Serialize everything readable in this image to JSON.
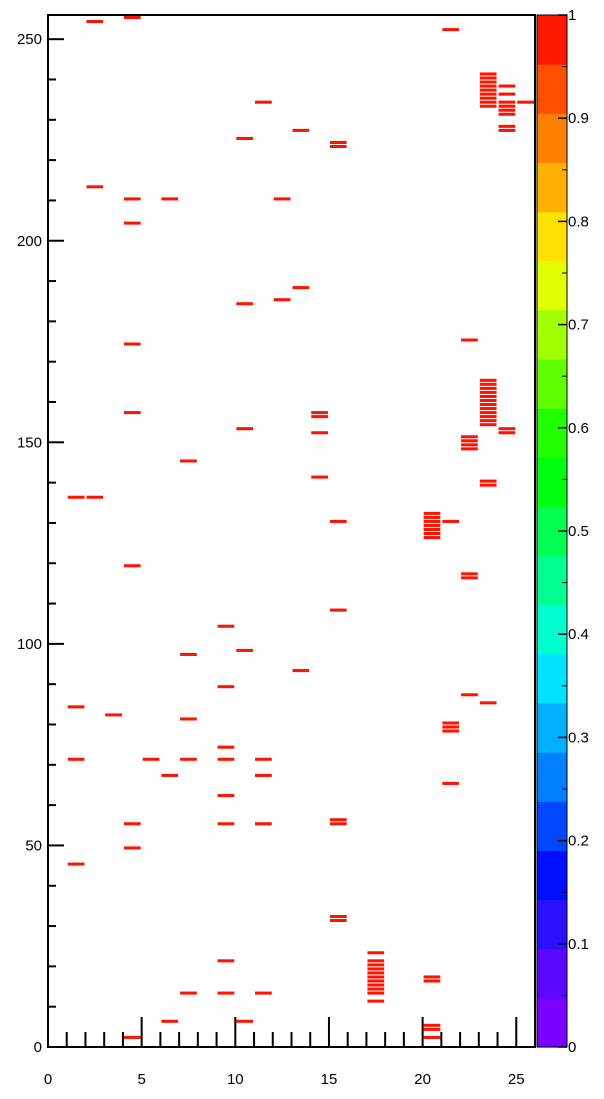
{
  "chart_data": {
    "type": "heatmap",
    "title": "",
    "xlabel": "",
    "ylabel": "",
    "xlim": [
      0,
      26
    ],
    "ylim": [
      0,
      256
    ],
    "x_ticks": [
      0,
      5,
      10,
      15,
      20,
      25
    ],
    "y_ticks": [
      0,
      50,
      100,
      150,
      200,
      250
    ],
    "colorbar": {
      "range": [
        0,
        1
      ],
      "ticks": [
        0,
        0.1,
        0.2,
        0.3,
        0.4,
        0.5,
        0.6,
        0.7,
        0.8,
        0.9,
        1
      ],
      "colors": [
        "#7b00ff",
        "#5a08ff",
        "#2a10ff",
        "#0010ff",
        "#0048ff",
        "#0080ff",
        "#00b0ff",
        "#00e0ff",
        "#00ffd0",
        "#00ff90",
        "#00ff50",
        "#00ff10",
        "#20ff00",
        "#60ff00",
        "#a0ff00",
        "#e0ff00",
        "#ffe000",
        "#ffb000",
        "#ff8000",
        "#ff5000",
        "#ff1800"
      ]
    },
    "cell_value": 1,
    "cell_color": "#ff1200",
    "cells": [
      [
        2,
        254
      ],
      [
        4,
        255
      ],
      [
        21,
        252
      ],
      [
        23,
        241
      ],
      [
        23,
        240
      ],
      [
        23,
        239
      ],
      [
        23,
        238
      ],
      [
        24,
        238
      ],
      [
        23,
        237
      ],
      [
        23,
        236
      ],
      [
        24,
        236
      ],
      [
        23,
        235
      ],
      [
        23,
        234
      ],
      [
        24,
        234
      ],
      [
        25,
        234
      ],
      [
        23,
        233
      ],
      [
        24,
        233
      ],
      [
        24,
        232
      ],
      [
        24,
        231
      ],
      [
        24,
        228
      ],
      [
        24,
        227
      ],
      [
        11,
        234
      ],
      [
        13,
        227
      ],
      [
        10,
        225
      ],
      [
        15,
        224
      ],
      [
        15,
        223
      ],
      [
        2,
        213
      ],
      [
        4,
        210
      ],
      [
        6,
        210
      ],
      [
        12,
        210
      ],
      [
        4,
        204
      ],
      [
        13,
        188
      ],
      [
        12,
        185
      ],
      [
        10,
        184
      ],
      [
        4,
        174
      ],
      [
        22,
        175
      ],
      [
        23,
        165
      ],
      [
        23,
        164
      ],
      [
        23,
        163
      ],
      [
        23,
        162
      ],
      [
        23,
        161
      ],
      [
        23,
        160
      ],
      [
        23,
        159
      ],
      [
        23,
        158
      ],
      [
        23,
        157
      ],
      [
        23,
        156
      ],
      [
        23,
        155
      ],
      [
        23,
        154
      ],
      [
        24,
        153
      ],
      [
        24,
        152
      ],
      [
        4,
        157
      ],
      [
        14,
        157
      ],
      [
        14,
        156
      ],
      [
        14,
        152
      ],
      [
        10,
        153
      ],
      [
        22,
        151
      ],
      [
        22,
        150
      ],
      [
        22,
        149
      ],
      [
        22,
        148
      ],
      [
        7,
        145
      ],
      [
        14,
        141
      ],
      [
        23,
        140
      ],
      [
        23,
        139
      ],
      [
        1,
        136
      ],
      [
        2,
        136
      ],
      [
        20,
        132
      ],
      [
        20,
        131
      ],
      [
        20,
        130
      ],
      [
        20,
        129
      ],
      [
        21,
        130
      ],
      [
        15,
        130
      ],
      [
        20,
        128
      ],
      [
        20,
        127
      ],
      [
        20,
        126
      ],
      [
        4,
        119
      ],
      [
        22,
        117
      ],
      [
        22,
        116
      ],
      [
        15,
        108
      ],
      [
        9,
        104
      ],
      [
        10,
        98
      ],
      [
        7,
        97
      ],
      [
        13,
        93
      ],
      [
        9,
        89
      ],
      [
        22,
        87
      ],
      [
        23,
        85
      ],
      [
        1,
        84
      ],
      [
        3,
        82
      ],
      [
        7,
        81
      ],
      [
        21,
        80
      ],
      [
        21,
        79
      ],
      [
        21,
        78
      ],
      [
        9,
        74
      ],
      [
        1,
        71
      ],
      [
        5,
        71
      ],
      [
        7,
        71
      ],
      [
        9,
        71
      ],
      [
        11,
        71
      ],
      [
        6,
        67
      ],
      [
        11,
        67
      ],
      [
        21,
        65
      ],
      [
        9,
        62
      ],
      [
        4,
        55
      ],
      [
        9,
        55
      ],
      [
        11,
        55
      ],
      [
        15,
        56
      ],
      [
        15,
        55
      ],
      [
        4,
        49
      ],
      [
        1,
        45
      ],
      [
        15,
        32
      ],
      [
        15,
        31
      ],
      [
        17,
        23
      ],
      [
        17,
        21
      ],
      [
        17,
        20
      ],
      [
        17,
        19
      ],
      [
        17,
        18
      ],
      [
        17,
        17
      ],
      [
        17,
        16
      ],
      [
        17,
        15
      ],
      [
        17,
        14
      ],
      [
        17,
        13
      ],
      [
        9,
        21
      ],
      [
        20,
        17
      ],
      [
        20,
        16
      ],
      [
        7,
        13
      ],
      [
        9,
        13
      ],
      [
        11,
        13
      ],
      [
        17,
        11
      ],
      [
        6,
        6
      ],
      [
        10,
        6
      ],
      [
        20,
        5
      ],
      [
        20,
        4
      ],
      [
        4,
        2
      ],
      [
        20,
        2
      ]
    ]
  }
}
